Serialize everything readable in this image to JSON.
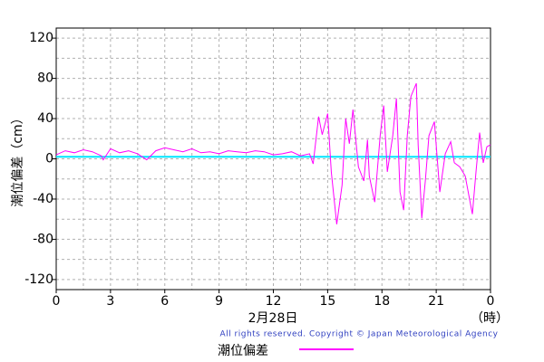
{
  "chart_data": {
    "type": "line",
    "y_label": "潮位偏差（cm）",
    "x_label": "2月28日",
    "x_unit": "（時）",
    "copyright": "All rights reserved. Copyright © Japan Meteorological Agency",
    "xlim": [
      0,
      24
    ],
    "ylim": [
      -130,
      130
    ],
    "xticks": [
      0,
      3,
      6,
      9,
      12,
      15,
      18,
      21,
      {
        "value": 24,
        "label": "0"
      }
    ],
    "yticks": [
      -120,
      -80,
      -40,
      0,
      40,
      80,
      120
    ],
    "xgrid": [
      1.5,
      3,
      4.5,
      6,
      7.5,
      9,
      10.5,
      12,
      13.5,
      15,
      16.5,
      18,
      19.5,
      21,
      22.5
    ],
    "ygrid": [
      -120,
      -100,
      -80,
      -60,
      -40,
      -20,
      0,
      20,
      40,
      60,
      80,
      100,
      120
    ],
    "grid": true,
    "reference_line": {
      "value": 2,
      "color": "#00e5ff"
    },
    "x": [
      0,
      0.5,
      1,
      1.5,
      2,
      2.5,
      2.6,
      3,
      3.5,
      4,
      4.5,
      5,
      5.5,
      6,
      6.5,
      7,
      7.5,
      8,
      8.5,
      9,
      9.5,
      10,
      10.5,
      11,
      11.5,
      12,
      12.5,
      13,
      13.5,
      14,
      14.2,
      14.5,
      14.7,
      15,
      15.2,
      15.5,
      15.8,
      16,
      16.2,
      16.4,
      16.7,
      17,
      17.2,
      17.3,
      17.6,
      17.9,
      18.1,
      18.3,
      18.6,
      18.8,
      19,
      19.2,
      19.4,
      19.6,
      19.9,
      20,
      20.2,
      20.4,
      20.6,
      20.9,
      21.2,
      21.5,
      21.8,
      22,
      22.3,
      22.6,
      23,
      23.2,
      23.4,
      23.6,
      23.8,
      24
    ],
    "series": [
      {
        "name": "潮位偏差",
        "color": "#ff00ff",
        "values": [
          4,
          8,
          6,
          9,
          7,
          3,
          -1,
          10,
          6,
          8,
          5,
          -1,
          8,
          11,
          9,
          7,
          10,
          6,
          7,
          5,
          8,
          7,
          6,
          8,
          7,
          4,
          5,
          7,
          3,
          5,
          -5,
          42,
          24,
          45,
          -13,
          -65,
          -26,
          40,
          15,
          49,
          -8,
          -22,
          19,
          -17,
          -43,
          23,
          53,
          -13,
          23,
          60,
          -33,
          -51,
          23,
          62,
          75,
          14,
          -59,
          -22,
          23,
          37,
          -33,
          5,
          17,
          -4,
          -8,
          -17,
          -55,
          -13,
          26,
          -4,
          12,
          14
        ]
      }
    ]
  }
}
